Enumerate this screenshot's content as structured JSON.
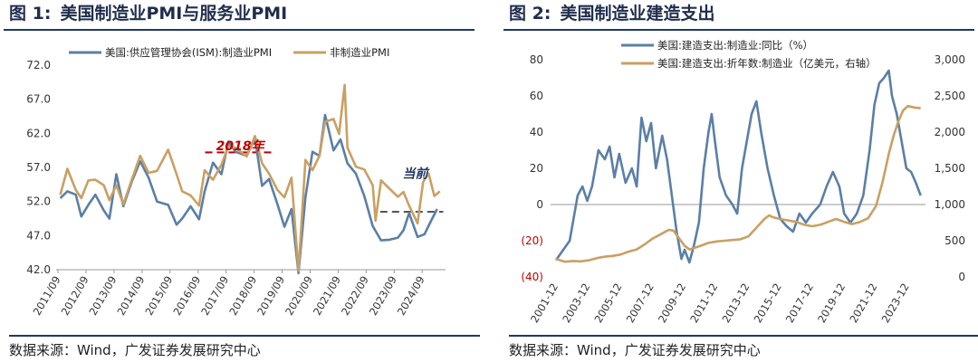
{
  "panels": [
    {
      "fig_label": "图 1:",
      "title": "美国制造业PMI与服务业PMI",
      "source": "数据来源：Wind，广发证券发展研究中心"
    },
    {
      "fig_label": "图 2:",
      "title": "美国制造业建造支出",
      "source": "数据来源：Wind，广发证券发展研究中心"
    }
  ],
  "chart_data": [
    {
      "type": "line",
      "title": "美国制造业PMI与服务业PMI",
      "x_ticks": [
        "2011/09",
        "2012/09",
        "2013/09",
        "2014/09",
        "2015/09",
        "2016/09",
        "2017/09",
        "2018/09",
        "2019/09",
        "2020/09",
        "2021/09",
        "2022/09",
        "2023/09",
        "2024/09"
      ],
      "ylim": [
        42,
        72
      ],
      "y_ticks": [
        "42.0",
        "47.0",
        "52.0",
        "57.0",
        "62.0",
        "67.0",
        "72.0"
      ],
      "legend_position": "top",
      "annotations": [
        {
          "text": "2018年",
          "x": "2018/03",
          "y": 59.5,
          "color": "#c00000"
        },
        {
          "text": "当前",
          "x": "2024/06",
          "y": 55.5,
          "color": "#1f3864"
        }
      ],
      "reference_lines": [
        {
          "y": 59.2,
          "x_from": "2016/12",
          "x_to": "2019/06",
          "color": "#c00000",
          "style": "dashed"
        },
        {
          "y": 50.5,
          "x_from": "2023/03",
          "x_to": "2025/06",
          "color": "#555555",
          "style": "dashed"
        }
      ],
      "series": [
        {
          "name": "美国:供应管理协会(ISM):制造业PMI",
          "color": "#5b7fa6",
          "points": [
            [
              2011.75,
              52.5
            ],
            [
              2012.0,
              53.5
            ],
            [
              2012.3,
              53.0
            ],
            [
              2012.5,
              49.8
            ],
            [
              2012.75,
              51.5
            ],
            [
              2013.0,
              53.0
            ],
            [
              2013.3,
              50.7
            ],
            [
              2013.5,
              49.5
            ],
            [
              2013.75,
              56.0
            ],
            [
              2014.0,
              51.3
            ],
            [
              2014.3,
              54.9
            ],
            [
              2014.6,
              57.9
            ],
            [
              2014.9,
              55.5
            ],
            [
              2015.2,
              52.0
            ],
            [
              2015.6,
              51.5
            ],
            [
              2015.9,
              48.6
            ],
            [
              2016.1,
              49.5
            ],
            [
              2016.4,
              51.3
            ],
            [
              2016.7,
              49.4
            ],
            [
              2016.9,
              53.5
            ],
            [
              2017.2,
              57.7
            ],
            [
              2017.5,
              56.0
            ],
            [
              2017.75,
              60.8
            ],
            [
              2018.0,
              59.3
            ],
            [
              2018.4,
              58.7
            ],
            [
              2018.7,
              61.3
            ],
            [
              2018.95,
              54.3
            ],
            [
              2019.2,
              55.3
            ],
            [
              2019.5,
              51.6
            ],
            [
              2019.75,
              48.3
            ],
            [
              2020.0,
              50.9
            ],
            [
              2020.25,
              41.5
            ],
            [
              2020.5,
              52.6
            ],
            [
              2020.75,
              59.3
            ],
            [
              2021.0,
              58.7
            ],
            [
              2021.2,
              64.7
            ],
            [
              2021.5,
              59.5
            ],
            [
              2021.75,
              61.1
            ],
            [
              2022.0,
              57.6
            ],
            [
              2022.3,
              56.1
            ],
            [
              2022.6,
              52.8
            ],
            [
              2022.9,
              48.4
            ],
            [
              2023.2,
              46.3
            ],
            [
              2023.5,
              46.4
            ],
            [
              2023.8,
              46.7
            ],
            [
              2024.0,
              47.8
            ],
            [
              2024.2,
              50.3
            ],
            [
              2024.5,
              46.8
            ],
            [
              2024.75,
              47.2
            ],
            [
              2025.0,
              49.3
            ],
            [
              2025.2,
              50.9
            ]
          ]
        },
        {
          "name": "非制造业PMI",
          "color": "#c9a063",
          "points": [
            [
              2011.75,
              53.0
            ],
            [
              2012.0,
              56.8
            ],
            [
              2012.3,
              53.7
            ],
            [
              2012.5,
              52.5
            ],
            [
              2012.75,
              55.1
            ],
            [
              2013.0,
              55.2
            ],
            [
              2013.3,
              54.4
            ],
            [
              2013.5,
              52.2
            ],
            [
              2013.75,
              54.4
            ],
            [
              2014.0,
              51.6
            ],
            [
              2014.3,
              55.2
            ],
            [
              2014.6,
              58.7
            ],
            [
              2014.9,
              56.2
            ],
            [
              2015.2,
              56.5
            ],
            [
              2015.6,
              59.6
            ],
            [
              2015.9,
              56.0
            ],
            [
              2016.1,
              53.5
            ],
            [
              2016.4,
              52.9
            ],
            [
              2016.7,
              51.4
            ],
            [
              2016.9,
              56.6
            ],
            [
              2017.2,
              55.2
            ],
            [
              2017.5,
              57.4
            ],
            [
              2017.75,
              60.1
            ],
            [
              2018.0,
              59.9
            ],
            [
              2018.4,
              58.6
            ],
            [
              2018.7,
              61.6
            ],
            [
              2018.95,
              57.6
            ],
            [
              2019.2,
              56.1
            ],
            [
              2019.5,
              53.7
            ],
            [
              2019.75,
              52.6
            ],
            [
              2020.0,
              55.5
            ],
            [
              2020.25,
              41.8
            ],
            [
              2020.5,
              58.1
            ],
            [
              2020.75,
              56.6
            ],
            [
              2021.0,
              58.7
            ],
            [
              2021.2,
              63.7
            ],
            [
              2021.5,
              64.1
            ],
            [
              2021.7,
              61.9
            ],
            [
              2021.9,
              69.1
            ],
            [
              2022.0,
              59.9
            ],
            [
              2022.3,
              57.1
            ],
            [
              2022.6,
              56.7
            ],
            [
              2022.9,
              54.4
            ],
            [
              2023.0,
              49.2
            ],
            [
              2023.2,
              55.1
            ],
            [
              2023.5,
              53.9
            ],
            [
              2023.8,
              52.7
            ],
            [
              2024.0,
              53.4
            ],
            [
              2024.2,
              51.4
            ],
            [
              2024.5,
              48.8
            ],
            [
              2024.7,
              54.9
            ],
            [
              2024.9,
              56.1
            ],
            [
              2025.1,
              52.8
            ],
            [
              2025.3,
              53.5
            ]
          ]
        }
      ]
    },
    {
      "type": "line",
      "title": "美国制造业建造支出",
      "x_ticks": [
        "2001-12",
        "2003-12",
        "2005-12",
        "2007-12",
        "2009-12",
        "2011-12",
        "2013-12",
        "2015-12",
        "2017-12",
        "2019-12",
        "2021-12",
        "2023-12"
      ],
      "y_left_ticks": [
        "(40)",
        "(20)",
        "0",
        "20",
        "40",
        "60",
        "80"
      ],
      "y_left_lim": [
        -40,
        80
      ],
      "y_right_ticks": [
        "0",
        "500",
        "1,000",
        "1,500",
        "2,000",
        "2,500",
        "3,000"
      ],
      "y_right_lim": [
        0,
        3000
      ],
      "legend_position": "top",
      "negative_tick_color": "#c00000",
      "series": [
        {
          "name": "美国:建造支出:制造业:同比（%）",
          "color": "#5b7fa6",
          "axis": "left",
          "points": [
            [
              2002.0,
              -30
            ],
            [
              2002.8,
              -20
            ],
            [
              2003.3,
              5
            ],
            [
              2003.6,
              10
            ],
            [
              2003.9,
              2
            ],
            [
              2004.2,
              10
            ],
            [
              2004.6,
              30
            ],
            [
              2005.0,
              25
            ],
            [
              2005.3,
              32
            ],
            [
              2005.6,
              15
            ],
            [
              2005.9,
              28
            ],
            [
              2006.3,
              12
            ],
            [
              2006.7,
              20
            ],
            [
              2007.0,
              10
            ],
            [
              2007.3,
              48
            ],
            [
              2007.6,
              35
            ],
            [
              2007.9,
              45
            ],
            [
              2008.2,
              20
            ],
            [
              2008.6,
              38
            ],
            [
              2008.9,
              25
            ],
            [
              2009.2,
              5
            ],
            [
              2009.5,
              -15
            ],
            [
              2009.8,
              -30
            ],
            [
              2010.0,
              -25
            ],
            [
              2010.3,
              -32
            ],
            [
              2010.6,
              -22
            ],
            [
              2010.9,
              -10
            ],
            [
              2011.2,
              20
            ],
            [
              2011.5,
              40
            ],
            [
              2011.7,
              50
            ],
            [
              2011.9,
              35
            ],
            [
              2012.2,
              15
            ],
            [
              2012.6,
              5
            ],
            [
              2013.0,
              0
            ],
            [
              2013.3,
              -5
            ],
            [
              2013.6,
              20
            ],
            [
              2013.9,
              35
            ],
            [
              2014.2,
              50
            ],
            [
              2014.5,
              57
            ],
            [
              2014.8,
              40
            ],
            [
              2015.2,
              20
            ],
            [
              2015.6,
              5
            ],
            [
              2016.0,
              -8
            ],
            [
              2016.4,
              -12
            ],
            [
              2016.8,
              -15
            ],
            [
              2017.2,
              -5
            ],
            [
              2017.6,
              -10
            ],
            [
              2018.0,
              -5
            ],
            [
              2018.5,
              0
            ],
            [
              2018.9,
              10
            ],
            [
              2019.3,
              18
            ],
            [
              2019.7,
              10
            ],
            [
              2020.0,
              -5
            ],
            [
              2020.4,
              -10
            ],
            [
              2020.8,
              -5
            ],
            [
              2021.2,
              5
            ],
            [
              2021.6,
              30
            ],
            [
              2021.9,
              55
            ],
            [
              2022.2,
              67
            ],
            [
              2022.5,
              70
            ],
            [
              2022.8,
              74
            ],
            [
              2023.0,
              60
            ],
            [
              2023.3,
              50
            ],
            [
              2023.6,
              35
            ],
            [
              2023.9,
              20
            ],
            [
              2024.2,
              18
            ],
            [
              2024.5,
              12
            ],
            [
              2024.8,
              5
            ]
          ]
        },
        {
          "name": "美国:建造支出:折年数:制造业（亿美元，右轴）",
          "color": "#c9a063",
          "axis": "right",
          "points": [
            [
              2001.9,
              250
            ],
            [
              2002.5,
              210
            ],
            [
              2003.0,
              220
            ],
            [
              2003.5,
              215
            ],
            [
              2004.0,
              230
            ],
            [
              2004.5,
              260
            ],
            [
              2005.0,
              280
            ],
            [
              2005.5,
              290
            ],
            [
              2006.0,
              310
            ],
            [
              2006.5,
              350
            ],
            [
              2007.0,
              380
            ],
            [
              2007.5,
              450
            ],
            [
              2008.0,
              530
            ],
            [
              2008.5,
              590
            ],
            [
              2009.0,
              650
            ],
            [
              2009.3,
              640
            ],
            [
              2009.7,
              520
            ],
            [
              2010.0,
              430
            ],
            [
              2010.3,
              380
            ],
            [
              2010.6,
              400
            ],
            [
              2011.0,
              430
            ],
            [
              2011.5,
              470
            ],
            [
              2012.0,
              490
            ],
            [
              2012.5,
              500
            ],
            [
              2013.0,
              510
            ],
            [
              2013.5,
              520
            ],
            [
              2014.0,
              560
            ],
            [
              2014.5,
              680
            ],
            [
              2015.0,
              800
            ],
            [
              2015.3,
              850
            ],
            [
              2015.6,
              820
            ],
            [
              2016.0,
              800
            ],
            [
              2016.5,
              780
            ],
            [
              2017.0,
              760
            ],
            [
              2017.5,
              720
            ],
            [
              2018.0,
              700
            ],
            [
              2018.5,
              720
            ],
            [
              2019.0,
              760
            ],
            [
              2019.5,
              800
            ],
            [
              2020.0,
              760
            ],
            [
              2020.5,
              730
            ],
            [
              2021.0,
              760
            ],
            [
              2021.5,
              810
            ],
            [
              2022.0,
              980
            ],
            [
              2022.4,
              1300
            ],
            [
              2022.8,
              1700
            ],
            [
              2023.1,
              1950
            ],
            [
              2023.4,
              2150
            ],
            [
              2023.7,
              2300
            ],
            [
              2024.0,
              2360
            ],
            [
              2024.4,
              2340
            ],
            [
              2024.8,
              2330
            ]
          ]
        }
      ]
    }
  ]
}
